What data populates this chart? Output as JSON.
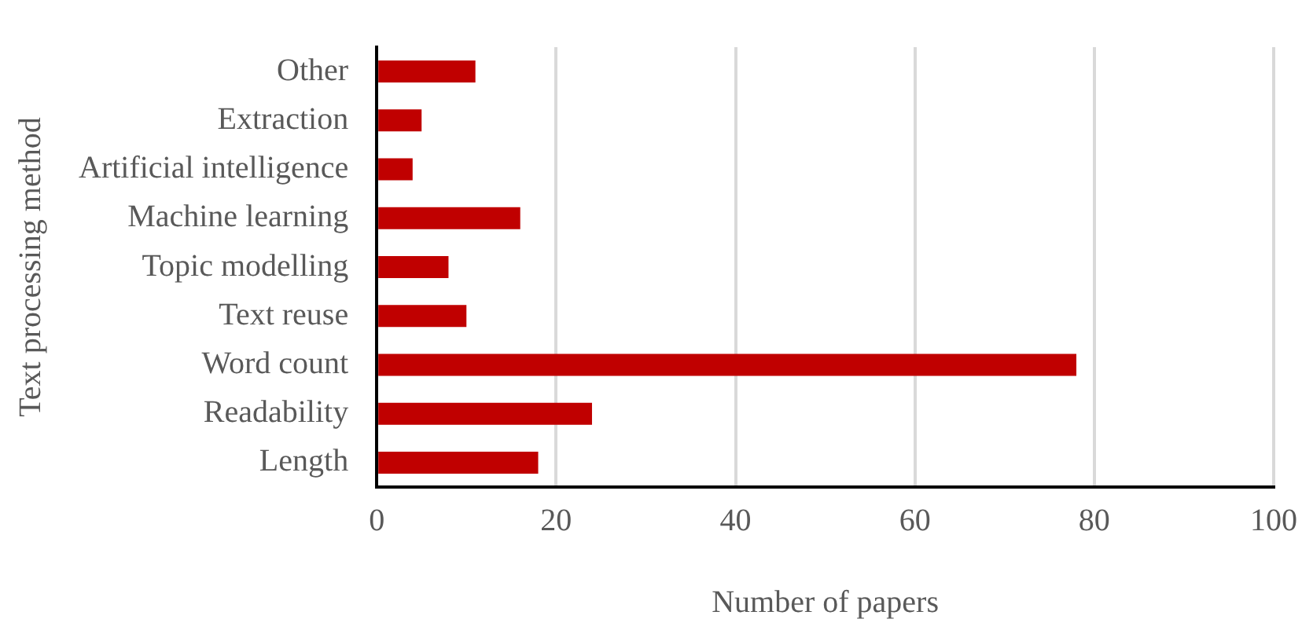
{
  "chart_data": {
    "type": "bar",
    "orientation": "horizontal",
    "xlabel": "Number of papers",
    "ylabel": "Text processing method",
    "categories": [
      "Other",
      "Extraction",
      "Artificial intelligence",
      "Machine learning",
      "Topic modelling",
      "Text reuse",
      "Word count",
      "Readability",
      "Length"
    ],
    "values": [
      11,
      5,
      4,
      16,
      8,
      10,
      78,
      24,
      18
    ],
    "color": "#c00000",
    "xlim": [
      0,
      100
    ],
    "xticks": [
      0,
      20,
      40,
      60,
      80,
      100
    ],
    "grid": "x",
    "legend": false
  }
}
